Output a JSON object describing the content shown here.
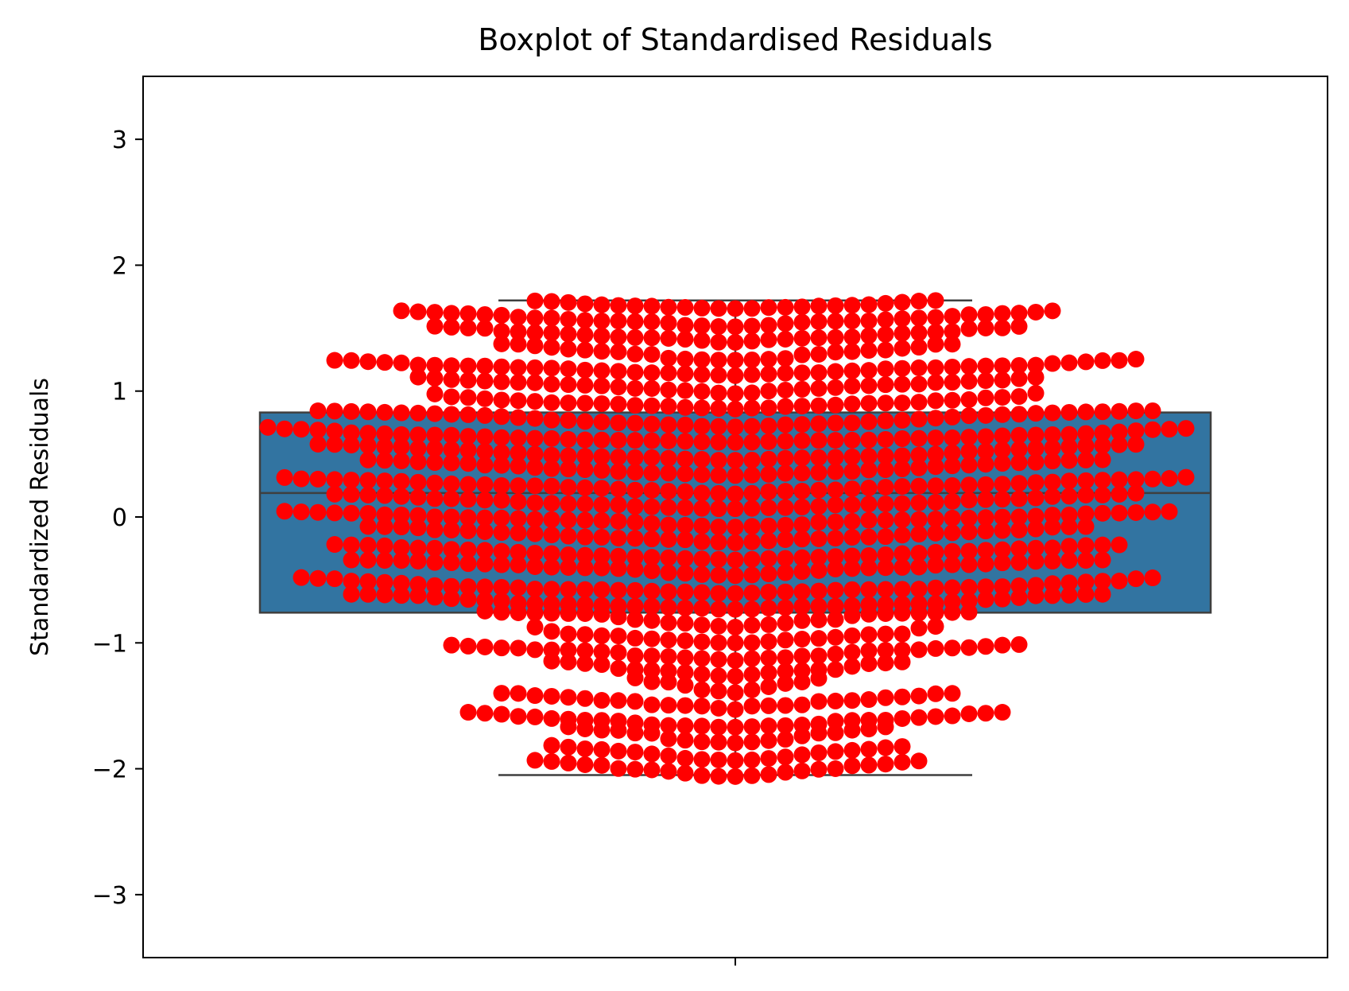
{
  "chart_data": {
    "type": "boxplot-swarm",
    "title": "Boxplot of  Standardised Residuals",
    "xlabel": "",
    "ylabel": "Standardized Residuals",
    "ylim": [
      -3.5,
      3.5
    ],
    "yticks": [
      -3,
      -2,
      -1,
      0,
      1,
      2,
      3
    ],
    "ytick_labels": [
      "−3",
      "−2",
      "−1",
      "0",
      "1",
      "2",
      "3"
    ],
    "grid": false,
    "legend": "none",
    "box": {
      "q1": -0.76,
      "median": 0.19,
      "q3": 0.83,
      "whisker_low": -2.05,
      "whisker_high": 1.72,
      "color": "#3274a1",
      "line_color": "#3f3f3f"
    },
    "swarm": {
      "color": "#ff0000",
      "count": 1100,
      "y_min": -2.07,
      "y_max": 1.72
    }
  }
}
